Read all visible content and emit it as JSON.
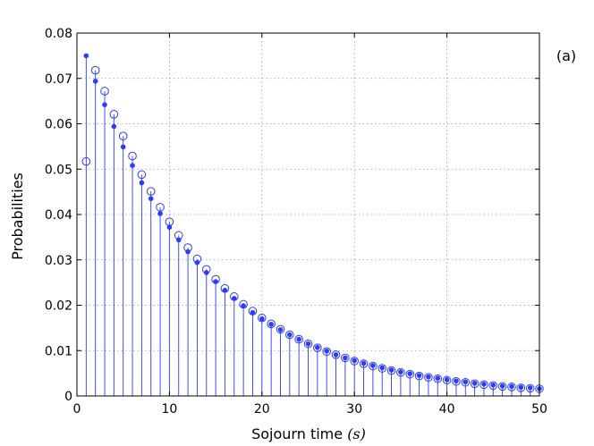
{
  "chart_data": {
    "type": "stem",
    "panel_label": "(a)",
    "xlabel_text": "Sojourn time ",
    "xlabel_symbol": "(s)",
    "ylabel": "Probabilities",
    "xlim": [
      0,
      50
    ],
    "ylim": [
      0,
      0.08
    ],
    "xticks": [
      0,
      10,
      20,
      30,
      40,
      50
    ],
    "yticks": [
      0,
      0.01,
      0.02,
      0.03,
      0.04,
      0.05,
      0.06,
      0.07,
      0.08
    ],
    "ytick_labels": [
      "0",
      "0.01",
      "0.02",
      "0.03",
      "0.04",
      "0.05",
      "0.06",
      "0.07",
      "0.08"
    ],
    "grid": true,
    "color": "#2b3bff",
    "x": [
      1,
      2,
      3,
      4,
      5,
      6,
      7,
      8,
      9,
      10,
      11,
      12,
      13,
      14,
      15,
      16,
      17,
      18,
      19,
      20,
      21,
      22,
      23,
      24,
      25,
      26,
      27,
      28,
      29,
      30,
      31,
      32,
      33,
      34,
      35,
      36,
      37,
      38,
      39,
      40,
      41,
      42,
      43,
      44,
      45,
      46,
      47,
      48,
      49,
      50
    ],
    "series": [
      {
        "marker": "open-circle",
        "values": [
          0.0517,
          0.0718,
          0.0672,
          0.0621,
          0.0573,
          0.0529,
          0.0488,
          0.0451,
          0.0416,
          0.0384,
          0.0354,
          0.0327,
          0.0302,
          0.0279,
          0.0257,
          0.0237,
          0.0219,
          0.0202,
          0.0187,
          0.0172,
          0.0159,
          0.0147,
          0.0135,
          0.0125,
          0.0115,
          0.0106,
          0.0098,
          0.0091,
          0.0084,
          0.0077,
          0.0071,
          0.0066,
          0.0061,
          0.0056,
          0.0052,
          0.0048,
          0.0044,
          0.0041,
          0.0038,
          0.0035,
          0.0032,
          0.003,
          0.0027,
          0.0025,
          0.0023,
          0.0021,
          0.002,
          0.0018,
          0.0017,
          0.0016
        ]
      },
      {
        "marker": "filled-dot",
        "values": [
          0.075,
          0.0694,
          0.0642,
          0.0594,
          0.0549,
          0.0508,
          0.047,
          0.0435,
          0.0402,
          0.0372,
          0.0344,
          0.0318,
          0.0294,
          0.0272,
          0.0252,
          0.0233,
          0.0215,
          0.0199,
          0.0184,
          0.017,
          0.0158,
          0.0146,
          0.0135,
          0.0125,
          0.0115,
          0.0107,
          0.0099,
          0.0091,
          0.0084,
          0.0078,
          0.0072,
          0.0067,
          0.0062,
          0.0057,
          0.0053,
          0.0049,
          0.0045,
          0.0042,
          0.0039,
          0.0036,
          0.0033,
          0.0031,
          0.0028,
          0.0026,
          0.0024,
          0.0022,
          0.0021,
          0.0019,
          0.0018,
          0.0016
        ]
      }
    ]
  }
}
